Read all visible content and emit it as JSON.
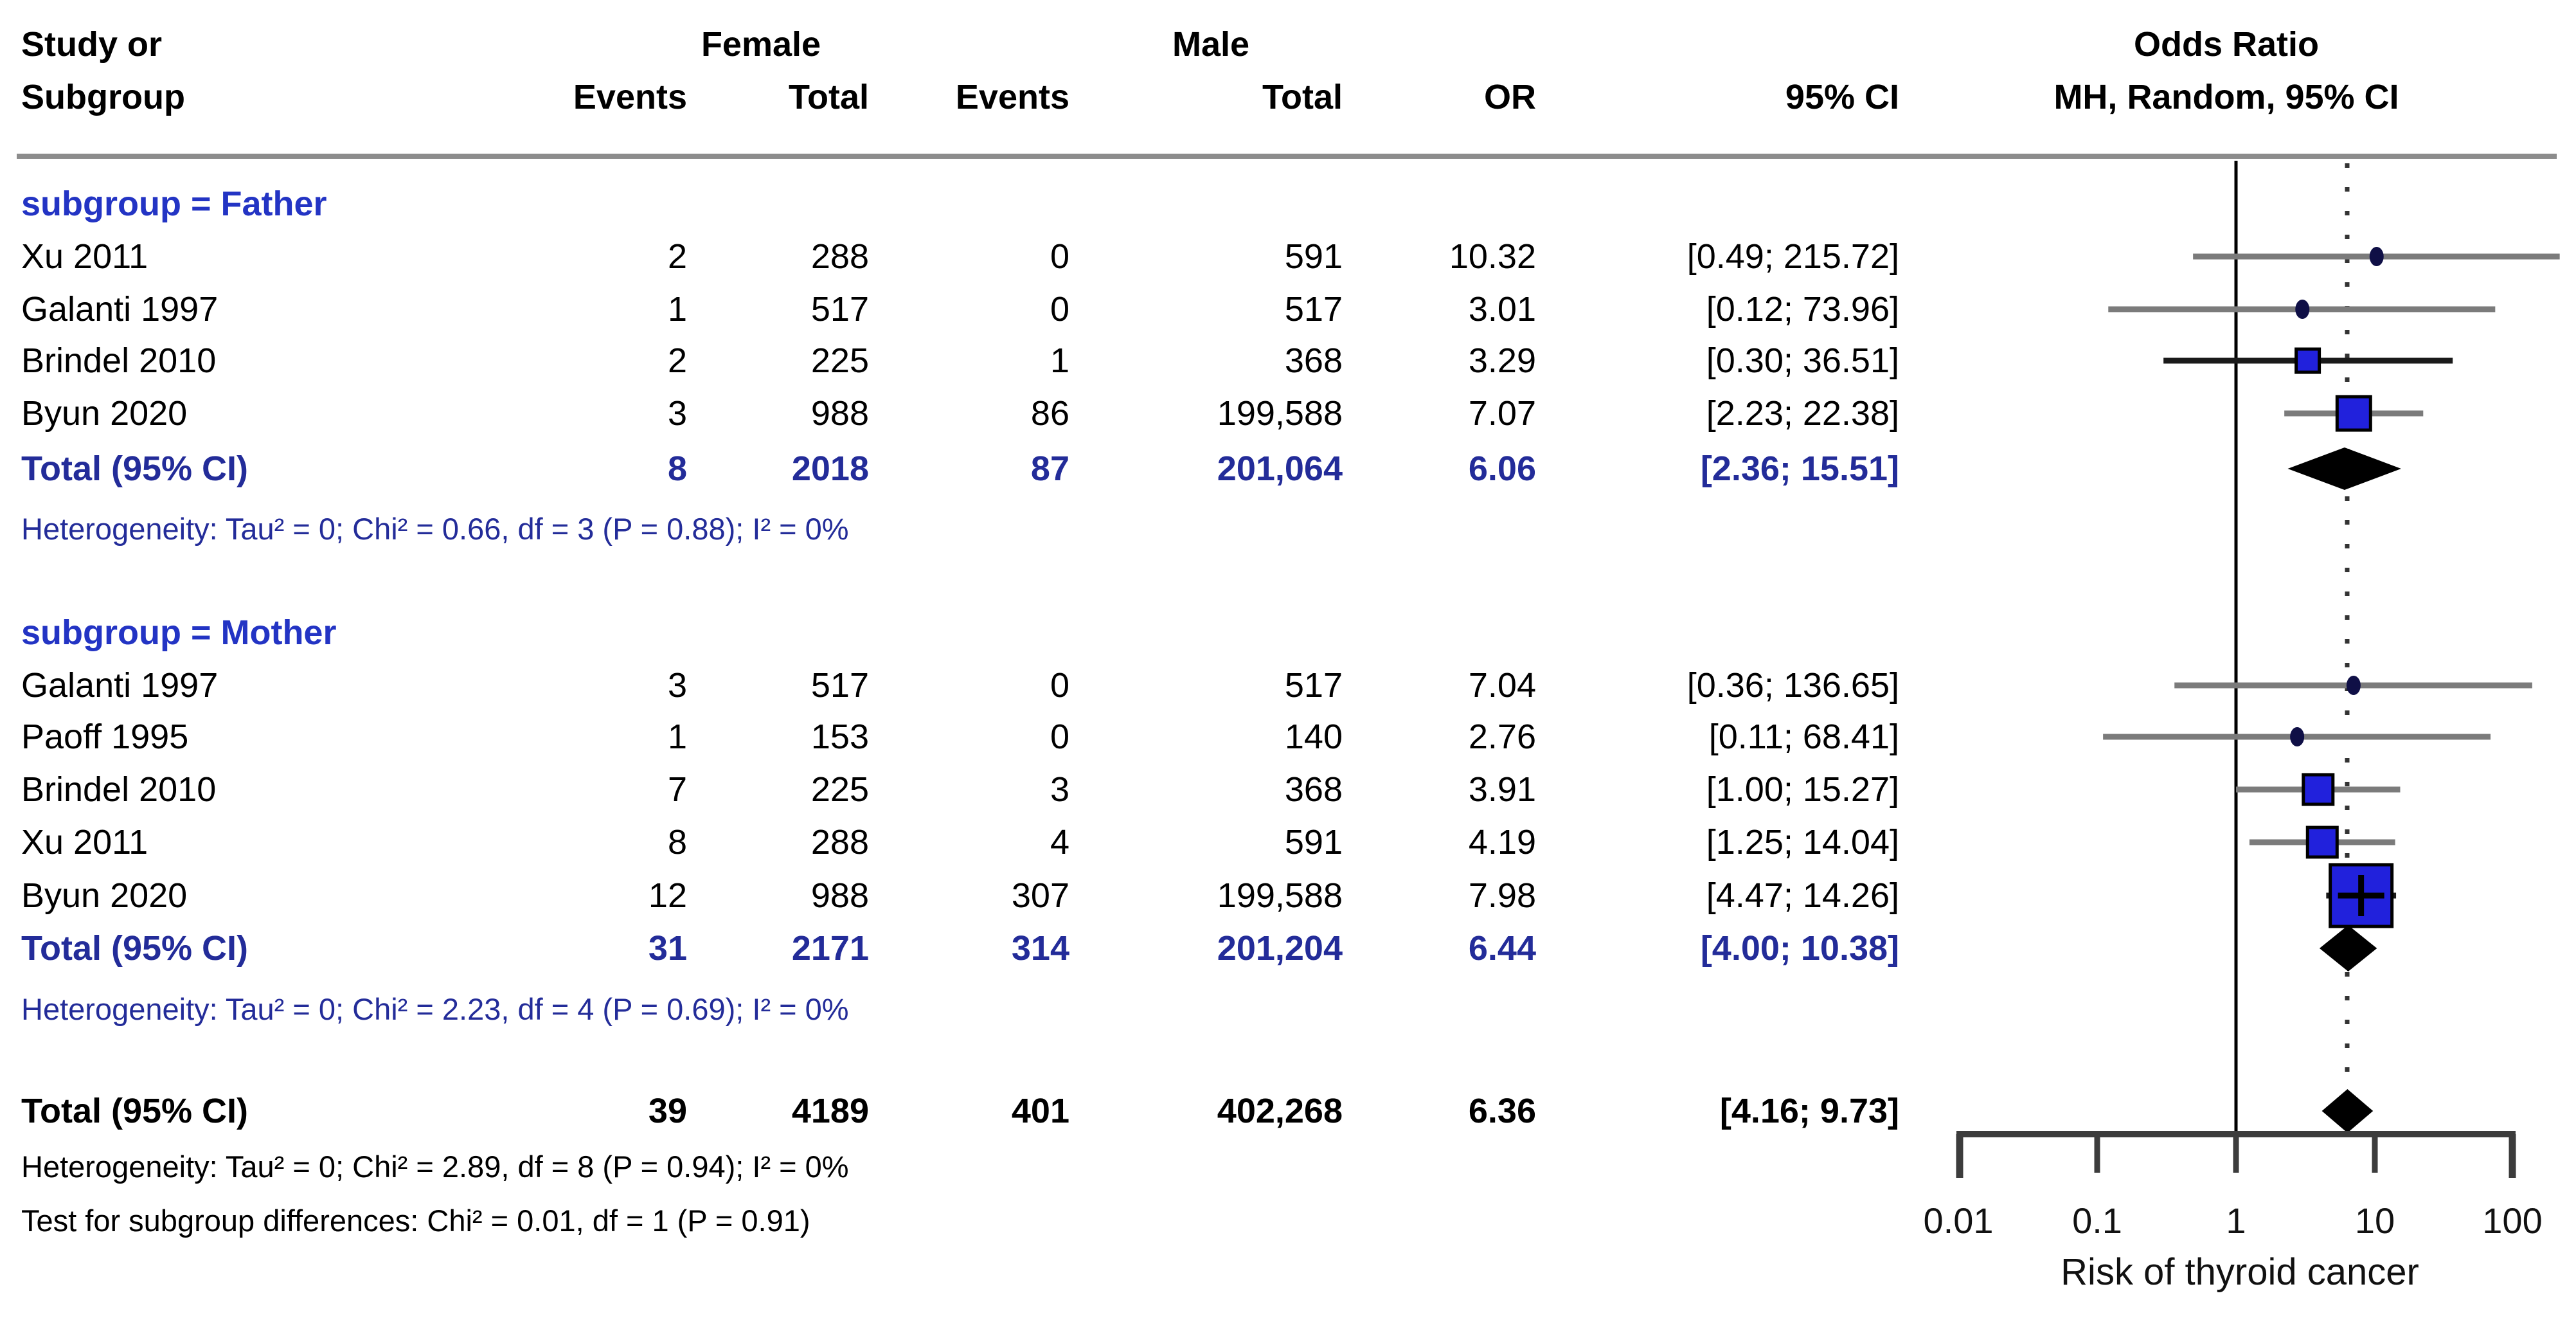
{
  "table": {
    "header": {
      "col1a": "Study or",
      "col1b": "Subgroup",
      "female": "Female",
      "male": "Male",
      "events": "Events",
      "total": "Total",
      "or": "OR",
      "ci": "95% CI",
      "plot_line1": "Odds Ratio",
      "plot_line2": "MH, Random, 95% CI"
    },
    "father": {
      "label": "subgroup = Father",
      "rows": [
        {
          "study": "Xu 2011",
          "ef": "2",
          "tf": "288",
          "em": "0",
          "tm": "591",
          "or": "10.32",
          "ci": "[0.49; 215.72]"
        },
        {
          "study": "Galanti 1997",
          "ef": "1",
          "tf": "517",
          "em": "0",
          "tm": "517",
          "or": "3.01",
          "ci": "[0.12; 73.96]"
        },
        {
          "study": "Brindel 2010",
          "ef": "2",
          "tf": "225",
          "em": "1",
          "tm": "368",
          "or": "3.29",
          "ci": "[0.30; 36.51]"
        },
        {
          "study": "Byun 2020",
          "ef": "3",
          "tf": "988",
          "em": "86",
          "tm": "199,588",
          "or": "7.07",
          "ci": "[2.23; 22.38]"
        }
      ],
      "total": {
        "study": "Total (95% CI)",
        "ef": "8",
        "tf": "2018",
        "em": "87",
        "tm": "201,064",
        "or": "6.06",
        "ci": "[2.36; 15.51]"
      },
      "het": "Heterogeneity: Tau² = 0; Chi² = 0.66, df = 3 (P = 0.88); I² = 0%"
    },
    "mother": {
      "label": "subgroup = Mother",
      "rows": [
        {
          "study": "Galanti 1997",
          "ef": "3",
          "tf": "517",
          "em": "0",
          "tm": "517",
          "or": "7.04",
          "ci": "[0.36; 136.65]"
        },
        {
          "study": "Paoff 1995",
          "ef": "1",
          "tf": "153",
          "em": "0",
          "tm": "140",
          "or": "2.76",
          "ci": "[0.11; 68.41]"
        },
        {
          "study": "Brindel 2010",
          "ef": "7",
          "tf": "225",
          "em": "3",
          "tm": "368",
          "or": "3.91",
          "ci": "[1.00; 15.27]"
        },
        {
          "study": "Xu 2011",
          "ef": "8",
          "tf": "288",
          "em": "4",
          "tm": "591",
          "or": "4.19",
          "ci": "[1.25; 14.04]"
        },
        {
          "study": "Byun 2020",
          "ef": "12",
          "tf": "988",
          "em": "307",
          "tm": "199,588",
          "or": "7.98",
          "ci": "[4.47; 14.26]"
        }
      ],
      "total": {
        "study": "Total (95% CI)",
        "ef": "31",
        "tf": "2171",
        "em": "314",
        "tm": "201,204",
        "or": "6.44",
        "ci": "[4.00; 10.38]"
      },
      "het": "Heterogeneity: Tau² = 0; Chi² = 2.23, df = 4 (P = 0.69); I² = 0%"
    },
    "overall": {
      "total": {
        "study": "Total (95% CI)",
        "ef": "39",
        "tf": "4189",
        "em": "401",
        "tm": "402,268",
        "or": "6.36",
        "ci": "[4.16; 9.73]"
      },
      "het": "Heterogeneity: Tau² = 0; Chi² = 2.89, df = 8 (P = 0.94); I² = 0%",
      "test": "Test for subgroup differences: Chi² = 0.01, df = 1 (P = 0.91)"
    }
  },
  "chart_data": {
    "type": "scatter",
    "variant": "forest-plot",
    "x_scale": "log10",
    "x_range": [
      0.01,
      100
    ],
    "x_ticks": [
      0.01,
      0.1,
      1,
      10,
      100
    ],
    "x_tick_labels": [
      "0.01",
      "0.1",
      "1",
      "10",
      "100"
    ],
    "x_label": "Risk of thyroid cancer",
    "null_line": 1,
    "overall_dotted_line": 6.36,
    "marker_color": "#2121dc",
    "diamond_color": "#000000",
    "groups": [
      {
        "name": "Father",
        "rows": [
          {
            "study": "Xu 2011",
            "or": 10.32,
            "lo": 0.49,
            "hi": 215.72,
            "marker": "dot",
            "size": 26,
            "line": "gray"
          },
          {
            "study": "Galanti 1997",
            "or": 3.01,
            "lo": 0.12,
            "hi": 73.96,
            "marker": "dot",
            "size": 24,
            "line": "gray"
          },
          {
            "study": "Brindel 2010",
            "or": 3.29,
            "lo": 0.3,
            "hi": 36.51,
            "marker": "square",
            "size": 36,
            "line": "dark"
          },
          {
            "study": "Byun 2020",
            "or": 7.07,
            "lo": 2.23,
            "hi": 22.38,
            "marker": "square",
            "size": 52,
            "line": "gray"
          }
        ],
        "diamond": {
          "or": 6.06,
          "lo": 2.36,
          "hi": 15.51
        }
      },
      {
        "name": "Mother",
        "rows": [
          {
            "study": "Galanti 1997",
            "or": 7.04,
            "lo": 0.36,
            "hi": 136.65,
            "marker": "dot",
            "size": 26,
            "line": "gray"
          },
          {
            "study": "Paoff 1995",
            "or": 2.76,
            "lo": 0.11,
            "hi": 68.41,
            "marker": "dot",
            "size": 24,
            "line": "gray"
          },
          {
            "study": "Brindel 2010",
            "or": 3.91,
            "lo": 1.0,
            "hi": 15.27,
            "marker": "square",
            "size": 46,
            "line": "gray"
          },
          {
            "study": "Xu 2011",
            "or": 4.19,
            "lo": 1.25,
            "hi": 14.04,
            "marker": "square",
            "size": 46,
            "line": "gray"
          },
          {
            "study": "Byun 2020",
            "or": 7.98,
            "lo": 4.47,
            "hi": 14.26,
            "marker": "square-cross",
            "size": 96,
            "line": "dark"
          }
        ],
        "diamond": {
          "or": 6.44,
          "lo": 4.0,
          "hi": 10.38
        }
      }
    ],
    "overall": {
      "or": 6.36,
      "lo": 4.16,
      "hi": 9.73
    }
  }
}
